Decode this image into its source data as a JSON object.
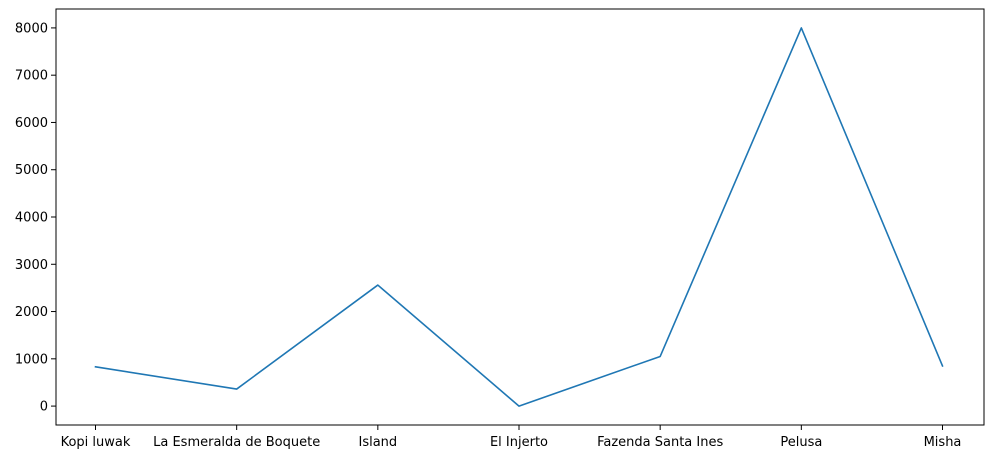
{
  "chart_data": {
    "type": "line",
    "categories": [
      "Kopi luwak",
      "La Esmeralda de Boquete",
      "Island",
      "El Injerto",
      "Fazenda Santa Ines",
      "Pelusa",
      "Misha"
    ],
    "series": [
      {
        "values": [
          830,
          360,
          2560,
          0,
          1050,
          8000,
          850
        ],
        "color": "#1f77b4"
      }
    ],
    "ylim": [
      -400,
      8400
    ],
    "yticks": [
      0,
      1000,
      2000,
      3000,
      4000,
      5000,
      6000,
      7000,
      8000
    ],
    "grid": false,
    "xlabel": "",
    "ylabel": "",
    "title": ""
  }
}
